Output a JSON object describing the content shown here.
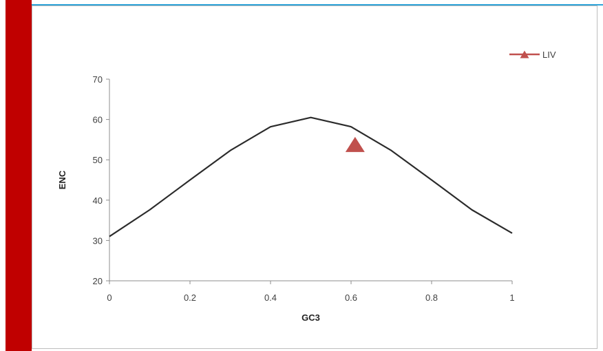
{
  "colors": {
    "accent_bar": "#c00000",
    "top_line": "#2ea3d8",
    "curve": "#2b2b2b",
    "marker": "#c0504d",
    "axis": "#8c8c8c"
  },
  "chart_data": {
    "type": "line",
    "xlabel": "GC3",
    "ylabel": "ENC",
    "xlim": [
      0,
      1
    ],
    "ylim": [
      20,
      70
    ],
    "x_ticks": [
      "0",
      "0.2",
      "0.4",
      "0.6",
      "0.8",
      "1"
    ],
    "y_ticks": [
      "20",
      "30",
      "40",
      "50",
      "60",
      "70"
    ],
    "grid": false,
    "legend_position": "top-right",
    "curve": {
      "x": [
        0,
        0.1,
        0.2,
        0.3,
        0.4,
        0.5,
        0.6,
        0.7,
        0.8,
        0.9,
        1.0
      ],
      "y": [
        31,
        37.6,
        45,
        52.3,
        58.2,
        60.5,
        58.2,
        52.3,
        45,
        37.6,
        31.8
      ]
    },
    "series": [
      {
        "name": "LIV",
        "marker": "triangle",
        "x": [
          0.61
        ],
        "y": [
          53.8
        ]
      }
    ]
  }
}
